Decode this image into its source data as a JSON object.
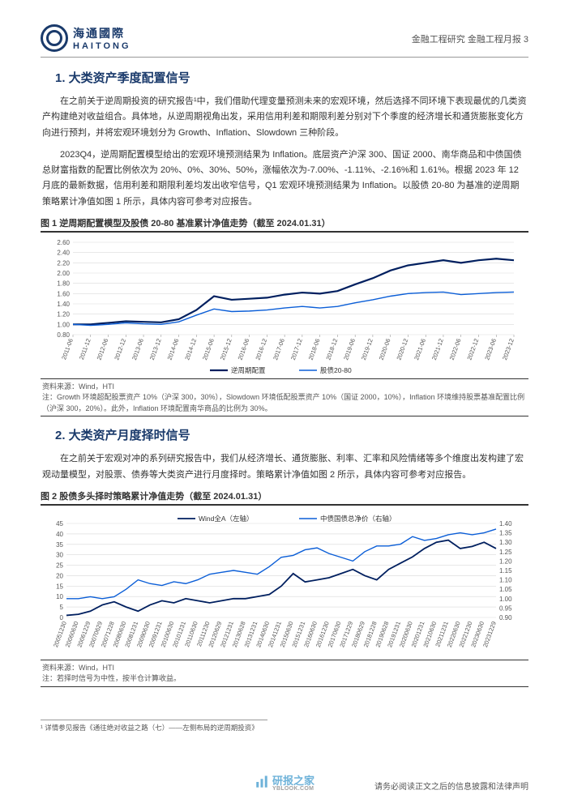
{
  "header": {
    "logo_cn": "海通國際",
    "logo_en": "HAITONG",
    "right_text": "金融工程研究 金融工程月报 3"
  },
  "section1": {
    "title": "1. 大类资产季度配置信号",
    "para1": "在之前关于逆周期投资的研究报告¹中，我们借助代理变量预测未来的宏观环境，然后选择不同环境下表现最优的几类资产构建绝对收益组合。具体地，从逆周期视角出发，采用信用利差和期限利差分别对下个季度的经济增长和通货膨胀变化方向进行预判，并将宏观环境划分为 Growth、Inflation、Slowdown 三种阶段。",
    "para2": "2023Q4，逆周期配置模型给出的宏观环境预测结果为 Inflation。底层资产沪深 300、国证 2000、南华商品和中债国债总财富指数的配置比例依次为 20%、0%、30%、50%，涨幅依次为-7.00%、-1.11%、-2.16%和 1.61%。根据 2023 年 12 月底的最新数据，信用利差和期限利差均发出收窄信号，Q1 宏观环境预测结果为 Inflation。以股债 20-80 为基准的逆周期策略累计净值如图 1 所示，具体内容可参考对应报告。"
  },
  "chart1": {
    "type": "line",
    "title": "图 1  逆周期配置模型及股债 20-80 基准累计净值走势（截至 2024.01.31）",
    "y_ticks": [
      0.8,
      1.0,
      1.2,
      1.4,
      1.6,
      1.8,
      2.0,
      2.2,
      2.4,
      2.6
    ],
    "ylim": [
      0.8,
      2.6
    ],
    "x_labels": [
      "2011-06",
      "2011-12",
      "2012-06",
      "2012-12",
      "2013-06",
      "2013-12",
      "2014-06",
      "2014-12",
      "2015-06",
      "2015-12",
      "2016-06",
      "2016-12",
      "2017-06",
      "2017-12",
      "2018-06",
      "2018-12",
      "2019-06",
      "2019-12",
      "2020-06",
      "2020-12",
      "2021-06",
      "2021-12",
      "2022-06",
      "2022-12",
      "2023-06",
      "2023-12"
    ],
    "series1": {
      "name": "逆周期配置",
      "color": "#001f5f",
      "width": 2.2,
      "values": [
        1.0,
        1.0,
        1.03,
        1.06,
        1.05,
        1.04,
        1.1,
        1.28,
        1.55,
        1.48,
        1.5,
        1.52,
        1.58,
        1.62,
        1.6,
        1.65,
        1.78,
        1.9,
        2.05,
        2.15,
        2.2,
        2.25,
        2.2,
        2.25,
        2.28,
        2.25
      ]
    },
    "series2": {
      "name": "股债20-80",
      "color": "#0b5ed7",
      "width": 1.4,
      "values": [
        1.0,
        0.98,
        1.0,
        1.03,
        1.01,
        1.0,
        1.05,
        1.18,
        1.3,
        1.25,
        1.26,
        1.28,
        1.32,
        1.35,
        1.32,
        1.35,
        1.42,
        1.48,
        1.55,
        1.6,
        1.62,
        1.63,
        1.58,
        1.6,
        1.62,
        1.63
      ]
    },
    "background_color": "#ffffff",
    "grid_color": "#d9d9d9",
    "footer_source": "资料来源：Wind，HTI",
    "footer_note": "注：Growth 环境超配股票资产 10%（沪深 300，30%），Slowdown 环境低配股票资产 10%（国证 2000，10%），Inflation 环境维持股票基准配置比例（沪深 300，20%）。此外，Inflation 环境配置南华商品的比例为 30%。"
  },
  "section2": {
    "title": "2. 大类资产月度择时信号",
    "para1": "在之前关于宏观对冲的系列研究报告中，我们从经济增长、通货膨胀、利率、汇率和风险情绪等多个维度出发构建了宏观动量模型，对股票、债券等大类资产进行月度择时。策略累计净值如图 2 所示，具体内容可参考对应报告。"
  },
  "chart2": {
    "type": "line-dual-axis",
    "title": "图 2  股债多头择时策略累计净值走势（截至 2024.01.31）",
    "y_left_ticks": [
      0,
      5,
      10,
      15,
      20,
      25,
      30,
      35,
      40,
      45
    ],
    "y_left_lim": [
      0,
      45
    ],
    "y_right_ticks": [
      0.9,
      0.95,
      1.0,
      1.05,
      1.1,
      1.15,
      1.2,
      1.25,
      1.3,
      1.35,
      1.4
    ],
    "y_right_lim": [
      0.9,
      1.4
    ],
    "x_labels": [
      "20051230",
      "20060630",
      "20061229",
      "20070629",
      "20071228",
      "20080630",
      "20081231",
      "20090630",
      "20091231",
      "20100630",
      "20101231",
      "20110630",
      "20111230",
      "20120629",
      "20121231",
      "20130628",
      "20131231",
      "20140630",
      "20141231",
      "20150630",
      "20151231",
      "20160630",
      "20161230",
      "20170630",
      "20171229",
      "20180629",
      "20181228",
      "20190628",
      "20191231",
      "20200630",
      "20201231",
      "20210630",
      "20211231",
      "20220630",
      "20221230",
      "20230630",
      "20231229"
    ],
    "series1": {
      "name": "Wind全A（左轴）",
      "color": "#001f5f",
      "width": 1.8,
      "axis": "left",
      "values": [
        1,
        1.5,
        3,
        6,
        7.5,
        5,
        3,
        6,
        8,
        7,
        9,
        8,
        7,
        8,
        9,
        9,
        10,
        11,
        15,
        21,
        17,
        18,
        19,
        21,
        23,
        20,
        18,
        23,
        26,
        29,
        33,
        36,
        37,
        33,
        34,
        36,
        33
      ]
    },
    "series2": {
      "name": "中债国债总净价（右轴）",
      "color": "#0b5ed7",
      "width": 1.4,
      "axis": "right",
      "values": [
        1.0,
        1.0,
        1.01,
        1.0,
        1.01,
        1.05,
        1.1,
        1.08,
        1.07,
        1.09,
        1.08,
        1.1,
        1.13,
        1.14,
        1.15,
        1.14,
        1.13,
        1.17,
        1.22,
        1.23,
        1.26,
        1.27,
        1.24,
        1.22,
        1.2,
        1.25,
        1.28,
        1.28,
        1.29,
        1.33,
        1.31,
        1.32,
        1.34,
        1.35,
        1.34,
        1.35,
        1.37
      ]
    },
    "background_color": "#ffffff",
    "grid_color": "#d9d9d9",
    "footer_source": "资料来源：Wind，HTI",
    "footer_note": "注：若择时信号为中性，按半仓计算收益。"
  },
  "footnote": {
    "text": "¹ 详情参见报告《通往绝对收益之路（七）——左侧布局的逆周期投资》"
  },
  "bottom": {
    "watermark_main": "研报之家",
    "watermark_sub": "YBLOOK.COM",
    "disclaimer": "请务必阅读正文之后的信息披露和法律声明"
  }
}
